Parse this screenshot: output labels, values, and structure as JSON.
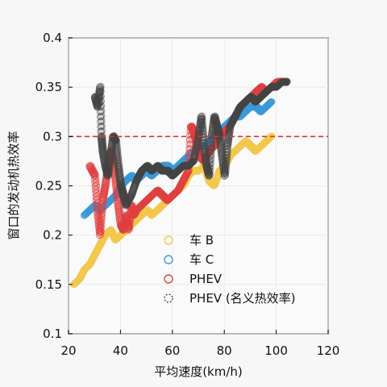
{
  "chart_data": {
    "type": "scatter",
    "xlabel": "平均速度(km/h)",
    "ylabel": "窗口的发动机热效率",
    "xlim": [
      20,
      120
    ],
    "ylim": [
      0.1,
      0.4
    ],
    "x_ticks": [
      20,
      40,
      60,
      80,
      100,
      120
    ],
    "y_ticks": [
      0.1,
      0.15,
      0.2,
      0.25,
      0.3,
      0.35,
      0.4
    ],
    "x_tick_labels": [
      "20",
      "40",
      "60",
      "80",
      "100",
      "120"
    ],
    "y_tick_labels": [
      "0.1",
      "0.15",
      "0.2",
      "0.25",
      "0.3",
      "0.35",
      "0.4"
    ],
    "grid": true,
    "legend_position": "bottom-center",
    "reference_line": {
      "y": 0.3,
      "color": "#e03030",
      "style": "dashed"
    },
    "series": [
      {
        "name": "车 B",
        "color": "#f2c84b",
        "points": [
          [
            22,
            0.15
          ],
          [
            24,
            0.155
          ],
          [
            26,
            0.165
          ],
          [
            28,
            0.17
          ],
          [
            30,
            0.18
          ],
          [
            32,
            0.19
          ],
          [
            34,
            0.2
          ],
          [
            36,
            0.205
          ],
          [
            38,
            0.195
          ],
          [
            40,
            0.2
          ],
          [
            42,
            0.205
          ],
          [
            44,
            0.21
          ],
          [
            46,
            0.215
          ],
          [
            48,
            0.22
          ],
          [
            50,
            0.225
          ],
          [
            52,
            0.22
          ],
          [
            54,
            0.225
          ],
          [
            56,
            0.23
          ],
          [
            58,
            0.235
          ],
          [
            60,
            0.24
          ],
          [
            62,
            0.245
          ],
          [
            64,
            0.25
          ],
          [
            66,
            0.26
          ],
          [
            68,
            0.265
          ],
          [
            70,
            0.265
          ],
          [
            72,
            0.27
          ],
          [
            74,
            0.255
          ],
          [
            76,
            0.25
          ],
          [
            78,
            0.265
          ],
          [
            80,
            0.27
          ],
          [
            82,
            0.28
          ],
          [
            84,
            0.285
          ],
          [
            86,
            0.29
          ],
          [
            88,
            0.295
          ],
          [
            90,
            0.29
          ],
          [
            92,
            0.285
          ],
          [
            94,
            0.29
          ],
          [
            96,
            0.295
          ],
          [
            98,
            0.3
          ]
        ]
      },
      {
        "name": "车 C",
        "color": "#3a9ad9",
        "points": [
          [
            26,
            0.22
          ],
          [
            28,
            0.225
          ],
          [
            30,
            0.23
          ],
          [
            32,
            0.225
          ],
          [
            34,
            0.23
          ],
          [
            36,
            0.235
          ],
          [
            38,
            0.24
          ],
          [
            40,
            0.25
          ],
          [
            42,
            0.255
          ],
          [
            44,
            0.26
          ],
          [
            46,
            0.255
          ],
          [
            48,
            0.26
          ],
          [
            50,
            0.265
          ],
          [
            52,
            0.26
          ],
          [
            54,
            0.265
          ],
          [
            56,
            0.27
          ],
          [
            58,
            0.27
          ],
          [
            60,
            0.265
          ],
          [
            62,
            0.27
          ],
          [
            64,
            0.275
          ],
          [
            66,
            0.28
          ],
          [
            68,
            0.285
          ],
          [
            70,
            0.29
          ],
          [
            72,
            0.29
          ],
          [
            74,
            0.295
          ],
          [
            76,
            0.3
          ],
          [
            78,
            0.305
          ],
          [
            80,
            0.31
          ],
          [
            82,
            0.315
          ],
          [
            84,
            0.32
          ],
          [
            86,
            0.32
          ],
          [
            88,
            0.325
          ],
          [
            90,
            0.33
          ],
          [
            92,
            0.33
          ],
          [
            94,
            0.325
          ],
          [
            96,
            0.33
          ],
          [
            98,
            0.335
          ]
        ]
      },
      {
        "name": "PHEV",
        "color": "#e04040",
        "points": [
          [
            28,
            0.27
          ],
          [
            30,
            0.26
          ],
          [
            31,
            0.225
          ],
          [
            32,
            0.2
          ],
          [
            33,
            0.235
          ],
          [
            34,
            0.25
          ],
          [
            35,
            0.27
          ],
          [
            36,
            0.285
          ],
          [
            37,
            0.275
          ],
          [
            38,
            0.255
          ],
          [
            39,
            0.23
          ],
          [
            40,
            0.21
          ],
          [
            41,
            0.205
          ],
          [
            42,
            0.22
          ],
          [
            43,
            0.205
          ],
          [
            44,
            0.23
          ],
          [
            45,
            0.22
          ],
          [
            46,
            0.225
          ],
          [
            48,
            0.23
          ],
          [
            50,
            0.235
          ],
          [
            52,
            0.24
          ],
          [
            54,
            0.245
          ],
          [
            56,
            0.24
          ],
          [
            58,
            0.235
          ],
          [
            60,
            0.24
          ],
          [
            62,
            0.245
          ],
          [
            64,
            0.255
          ],
          [
            66,
            0.265
          ],
          [
            67,
            0.31
          ],
          [
            68,
            0.305
          ],
          [
            69,
            0.295
          ],
          [
            70,
            0.28
          ],
          [
            72,
            0.275
          ],
          [
            74,
            0.285
          ],
          [
            76,
            0.29
          ],
          [
            78,
            0.3
          ],
          [
            80,
            0.305
          ],
          [
            82,
            0.31
          ],
          [
            84,
            0.32
          ],
          [
            86,
            0.33
          ],
          [
            88,
            0.335
          ],
          [
            90,
            0.34
          ],
          [
            92,
            0.345
          ],
          [
            94,
            0.35
          ],
          [
            96,
            0.345
          ],
          [
            98,
            0.35
          ],
          [
            100,
            0.355
          ],
          [
            102,
            0.355
          ]
        ]
      },
      {
        "name": "PHEV (名义热效率)",
        "color": "#444444",
        "points": [
          [
            30,
            0.34
          ],
          [
            31,
            0.33
          ],
          [
            32,
            0.35
          ],
          [
            32.5,
            0.3
          ],
          [
            33,
            0.285
          ],
          [
            34,
            0.27
          ],
          [
            35,
            0.26
          ],
          [
            36,
            0.28
          ],
          [
            37,
            0.3
          ],
          [
            38,
            0.295
          ],
          [
            39,
            0.27
          ],
          [
            40,
            0.25
          ],
          [
            41,
            0.24
          ],
          [
            42,
            0.23
          ],
          [
            44,
            0.24
          ],
          [
            46,
            0.255
          ],
          [
            48,
            0.265
          ],
          [
            50,
            0.27
          ],
          [
            52,
            0.265
          ],
          [
            54,
            0.27
          ],
          [
            56,
            0.265
          ],
          [
            58,
            0.265
          ],
          [
            60,
            0.26
          ],
          [
            62,
            0.265
          ],
          [
            64,
            0.27
          ],
          [
            66,
            0.27
          ],
          [
            68,
            0.275
          ],
          [
            70,
            0.3
          ],
          [
            71,
            0.32
          ],
          [
            72,
            0.29
          ],
          [
            73,
            0.27
          ],
          [
            74,
            0.26
          ],
          [
            75,
            0.3
          ],
          [
            76,
            0.32
          ],
          [
            77,
            0.31
          ],
          [
            78,
            0.3
          ],
          [
            79,
            0.28
          ],
          [
            80,
            0.26
          ],
          [
            81,
            0.29
          ],
          [
            82,
            0.31
          ],
          [
            84,
            0.32
          ],
          [
            86,
            0.33
          ],
          [
            88,
            0.335
          ],
          [
            90,
            0.34
          ],
          [
            92,
            0.335
          ],
          [
            94,
            0.34
          ],
          [
            96,
            0.345
          ],
          [
            98,
            0.35
          ],
          [
            100,
            0.35
          ],
          [
            102,
            0.355
          ],
          [
            104,
            0.355
          ]
        ]
      }
    ]
  }
}
